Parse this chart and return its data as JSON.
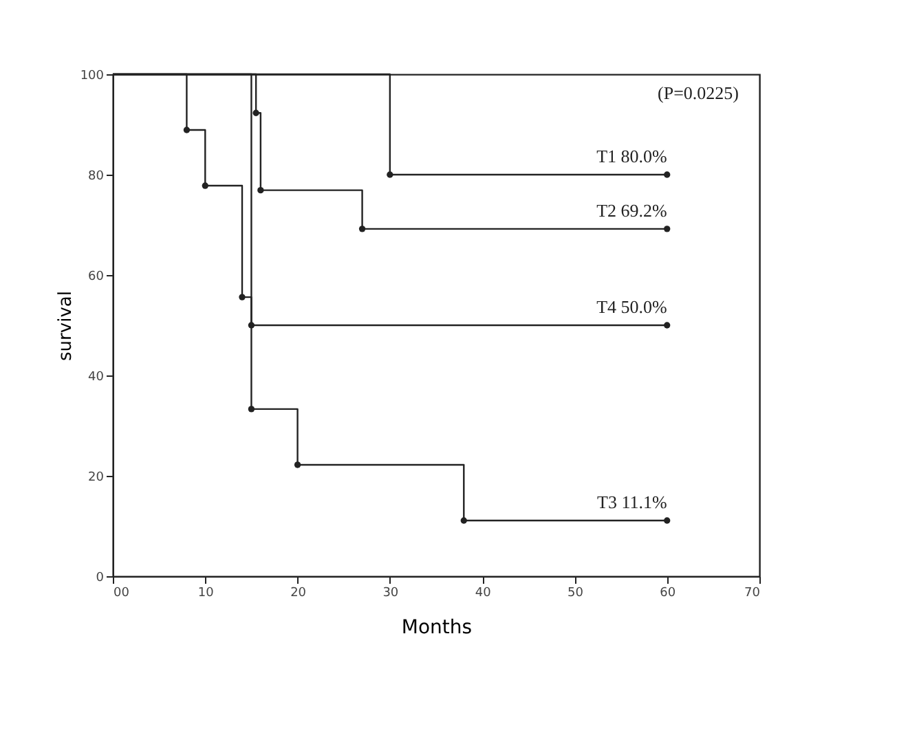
{
  "chart_data": {
    "type": "step",
    "xlabel": "Months",
    "ylabel": "survival",
    "xlim": [
      0,
      70
    ],
    "xticks": [
      {
        "value": 0,
        "label": "00"
      },
      10,
      20,
      30,
      40,
      50,
      60,
      70
    ],
    "ylim": [
      0,
      100
    ],
    "yticks": [
      0,
      20,
      40,
      60,
      80,
      100
    ],
    "grid": false,
    "marker": "circle",
    "line_style": "solid",
    "annotations": [
      "(P=0.0225)"
    ],
    "series": [
      {
        "name": "T1 80.0%",
        "color": "#222222",
        "x": [
          0,
          30,
          60
        ],
        "values": [
          100,
          80,
          80
        ]
      },
      {
        "name": "T2 69.2%",
        "color": "#222222",
        "x": [
          0,
          15.5,
          16,
          27,
          60
        ],
        "values": [
          100,
          92.3,
          76.9,
          69.2,
          69.2
        ]
      },
      {
        "name": "T4 50.0%",
        "color": "#222222",
        "x": [
          0,
          15,
          60
        ],
        "values": [
          100,
          50,
          50
        ]
      },
      {
        "name": "T3 11.1%",
        "color": "#222222",
        "x": [
          0,
          8,
          10,
          14,
          15,
          20,
          38,
          60
        ],
        "values": [
          100,
          88.9,
          77.8,
          55.6,
          33.3,
          22.2,
          11.1,
          11.1
        ]
      }
    ]
  }
}
